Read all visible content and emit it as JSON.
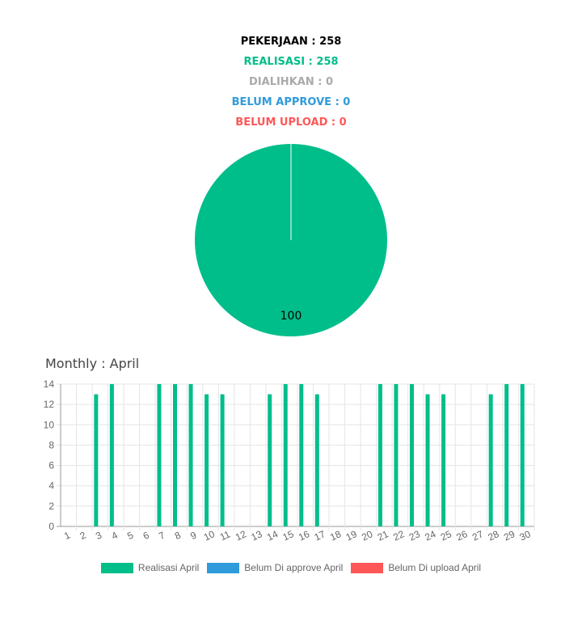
{
  "summary": {
    "pekerjaan": "PEKERJAAN : 258",
    "realisasi": "REALISASI : 258",
    "dialihkan": "DIALIHKAN : 0",
    "belum_approve": "BELUM APPROVE : 0",
    "belum_upload": "BELUM UPLOAD : 0"
  },
  "colors": {
    "pekerjaan": "#000000",
    "realisasi": "#00be8a",
    "dialihkan": "#aaaaaa",
    "belum_approve": "#2f9bdb",
    "belum_upload": "#ff5757"
  },
  "monthly_title": "Monthly : April",
  "chart_data": [
    {
      "type": "pie",
      "slices": [
        {
          "label": "100",
          "value": 100,
          "color": "#00be8a"
        }
      ]
    },
    {
      "type": "bar",
      "categories": [
        "1",
        "2",
        "3",
        "4",
        "5",
        "6",
        "7",
        "8",
        "9",
        "10",
        "11",
        "12",
        "13",
        "14",
        "15",
        "16",
        "17",
        "18",
        "19",
        "20",
        "21",
        "22",
        "23",
        "24",
        "25",
        "26",
        "27",
        "28",
        "29",
        "30"
      ],
      "ylim": [
        0,
        14
      ],
      "yticks": [
        0,
        2,
        4,
        6,
        8,
        10,
        12,
        14
      ],
      "grid": true,
      "legend_position": "bottom",
      "series": [
        {
          "name": "Realisasi April",
          "color": "#00be8a",
          "values": [
            0,
            0,
            13,
            14,
            0,
            0,
            14,
            14,
            14,
            13,
            13,
            0,
            0,
            13,
            14,
            14,
            13,
            0,
            0,
            0,
            14,
            14,
            14,
            13,
            13,
            0,
            0,
            13,
            14,
            14
          ]
        },
        {
          "name": "Belum Di approve April",
          "color": "#2f9bdb",
          "values": [
            0,
            0,
            0,
            0,
            0,
            0,
            0,
            0,
            0,
            0,
            0,
            0,
            0,
            0,
            0,
            0,
            0,
            0,
            0,
            0,
            0,
            0,
            0,
            0,
            0,
            0,
            0,
            0,
            0,
            0
          ]
        },
        {
          "name": "Belum Di upload April",
          "color": "#ff5757",
          "values": [
            0,
            0,
            0,
            0,
            0,
            0,
            0,
            0,
            0,
            0,
            0,
            0,
            0,
            0,
            0,
            0,
            0,
            0,
            0,
            0,
            0,
            0,
            0,
            0,
            0,
            0,
            0,
            0,
            0,
            0
          ]
        }
      ]
    }
  ]
}
